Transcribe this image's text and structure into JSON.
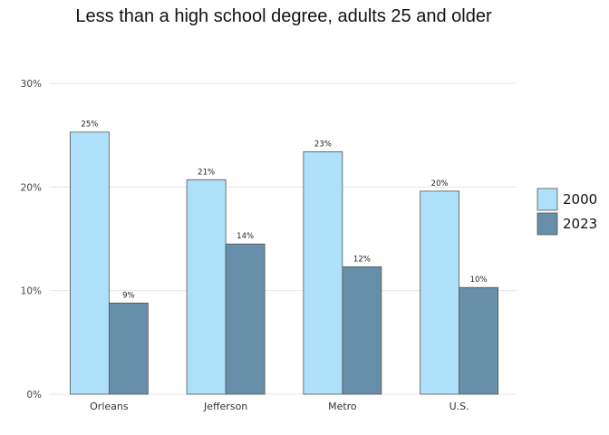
{
  "chart_data": {
    "type": "bar",
    "title": "Less than a high school degree, adults 25 and older",
    "xlabel": "",
    "ylabel": "",
    "categories": [
      "Orleans",
      "Jefferson",
      "Metro",
      "U.S."
    ],
    "ylim": [
      0,
      30
    ],
    "yticks": [
      {
        "value": 0,
        "label": "0%"
      },
      {
        "value": 10,
        "label": "10%"
      },
      {
        "value": 20,
        "label": "20%"
      },
      {
        "value": 30,
        "label": "30%"
      }
    ],
    "grid": true,
    "legend_position": "right",
    "series": [
      {
        "name": "2000",
        "color": "#aee0fa",
        "values": [
          25.3,
          20.7,
          23.4,
          19.6
        ],
        "labels": [
          "25%",
          "21%",
          "23%",
          "20%"
        ]
      },
      {
        "name": "2023",
        "color": "#688fa9",
        "values": [
          8.8,
          14.5,
          12.3,
          10.3
        ],
        "labels": [
          "9%",
          "14%",
          "12%",
          "10%"
        ]
      }
    ]
  }
}
